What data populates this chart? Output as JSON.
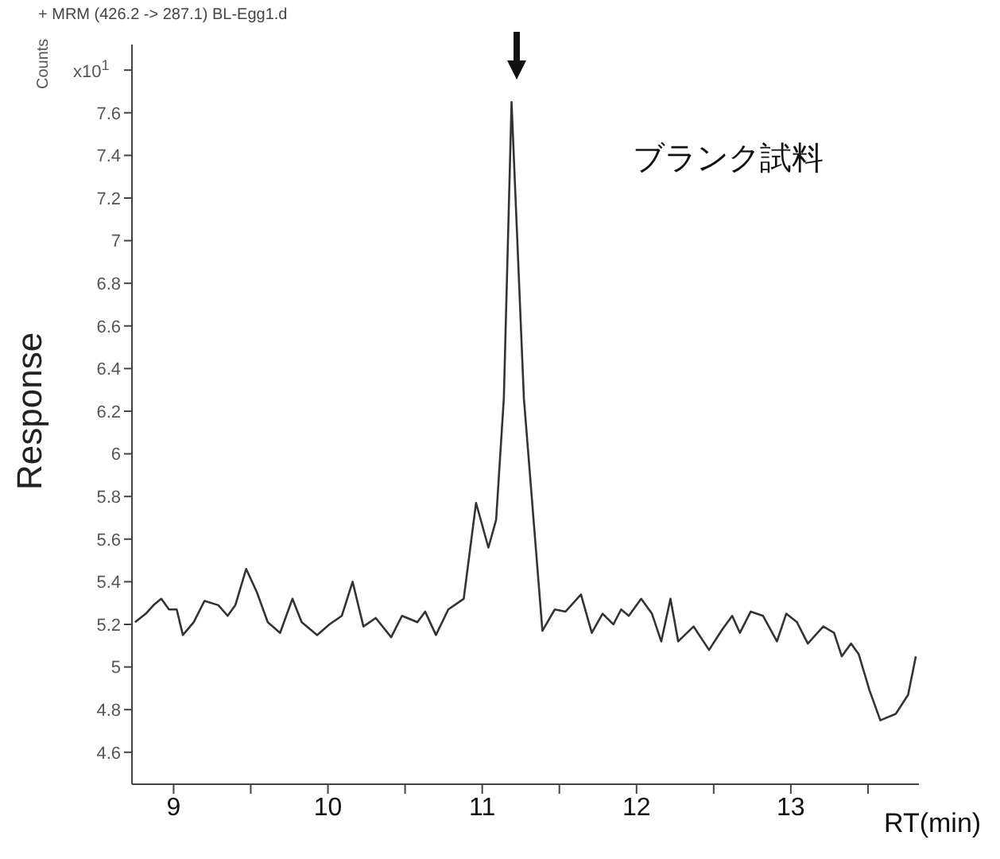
{
  "chart_data": {
    "type": "line",
    "title": "+ MRM (426.2 -> 287.1) BL-Egg1.d",
    "xlabel": "RT(min)",
    "ylabel": "Response",
    "annotations": [
      "Counts",
      "x10$^{1}$",
      "ブランク試料"
    ],
    "x": [
      8.75,
      8.82,
      8.87,
      8.92,
      8.97,
      9.02,
      9.06,
      9.13,
      9.2,
      9.29,
      9.35,
      9.4,
      9.47,
      9.54,
      9.61,
      9.69,
      9.77,
      9.83,
      9.93,
      10.01,
      10.09,
      10.16,
      10.23,
      10.31,
      10.41,
      10.48,
      10.58,
      10.63,
      10.7,
      10.78,
      10.88,
      10.96,
      11.04,
      11.09,
      11.14,
      11.19,
      11.27,
      11.39,
      11.47,
      11.54,
      11.64,
      11.71,
      11.78,
      11.85,
      11.9,
      11.95,
      12.03,
      12.1,
      12.16,
      12.22,
      12.27,
      12.37,
      12.47,
      12.55,
      12.62,
      12.67,
      12.74,
      12.82,
      12.91,
      12.97,
      13.04,
      13.11,
      13.21,
      13.28,
      13.33,
      13.39,
      13.44,
      13.51,
      13.58,
      13.68,
      13.76,
      13.81
    ],
    "values": [
      5.21,
      5.25,
      5.29,
      5.32,
      5.27,
      5.27,
      5.15,
      5.21,
      5.31,
      5.29,
      5.24,
      5.29,
      5.46,
      5.35,
      5.21,
      5.16,
      5.32,
      5.21,
      5.15,
      5.2,
      5.24,
      5.4,
      5.19,
      5.23,
      5.14,
      5.24,
      5.21,
      5.26,
      5.15,
      5.27,
      5.32,
      5.77,
      5.56,
      5.69,
      6.26,
      7.65,
      6.26,
      5.17,
      5.27,
      5.26,
      5.34,
      5.16,
      5.25,
      5.2,
      5.27,
      5.24,
      5.32,
      5.25,
      5.12,
      5.32,
      5.12,
      5.19,
      5.08,
      5.17,
      5.24,
      5.16,
      5.26,
      5.24,
      5.12,
      5.25,
      5.21,
      5.11,
      5.19,
      5.16,
      5.05,
      5.11,
      5.06,
      4.89,
      4.75,
      4.78,
      4.87,
      5.05
    ],
    "color": "#333333",
    "xlim": [
      8.73,
      13.83
    ],
    "xticks": [
      9,
      {
        "value": 9.5,
        "label": null
      },
      10,
      {
        "value": 10.5,
        "label": null
      },
      11,
      {
        "value": 11.5,
        "label": null
      },
      12,
      {
        "value": 12.5,
        "label": null
      },
      13,
      {
        "value": 13.5,
        "label": null
      }
    ],
    "ylim": [
      4.45,
      7.92
    ],
    "yticks": [
      4.6,
      4.8,
      5,
      5.2,
      5.4,
      5.6,
      5.8,
      6,
      6.2,
      6.4,
      6.6,
      6.8,
      7,
      7.2,
      7.4,
      7.6,
      {
        "value": 7.8,
        "label": null
      }
    ]
  }
}
